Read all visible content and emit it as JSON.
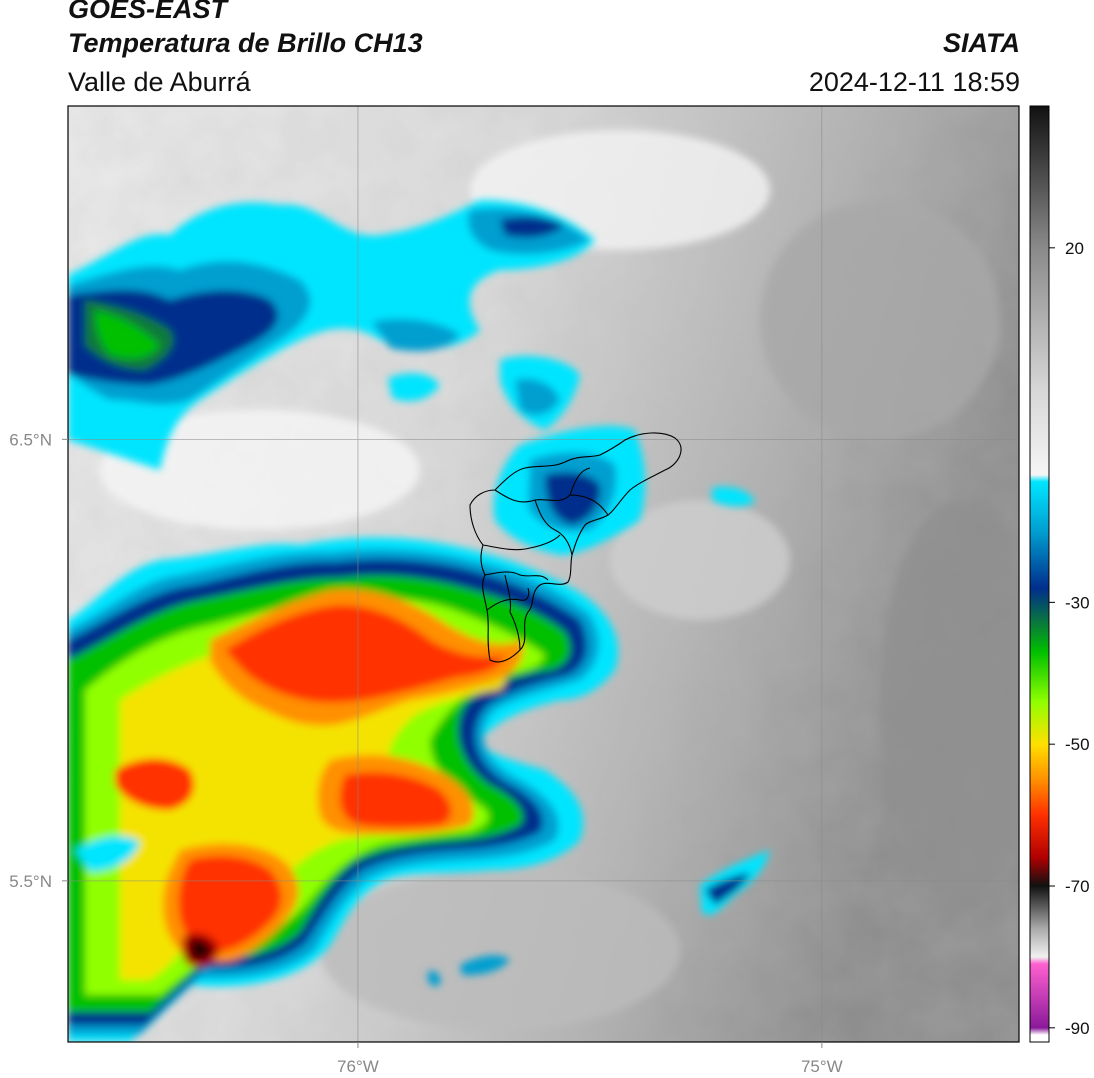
{
  "header": {
    "satellite": "GOES-EAST",
    "product": "Temperatura de Brillo CH13",
    "region": "Valle de Aburrá",
    "organization": "SIATA",
    "timestamp": "2024-12-11 18:59"
  },
  "map": {
    "lon_range": [
      -76.625,
      -74.575
    ],
    "lat_range": [
      5.135,
      7.255
    ],
    "lon_ticks": [
      {
        "value": -76,
        "label": "76°W"
      },
      {
        "value": -75,
        "label": "75°W"
      }
    ],
    "lat_ticks": [
      {
        "value": 6.5,
        "label": "6.5°N"
      },
      {
        "value": 5.5,
        "label": "5.5°N"
      }
    ],
    "gridlines": true
  },
  "colorbar": {
    "vmin": -92,
    "vmax": 40,
    "ticks": [
      {
        "value": 20,
        "label": "20"
      },
      {
        "value": -30,
        "label": "-30"
      },
      {
        "value": -50,
        "label": "-50"
      },
      {
        "value": -70,
        "label": "-70"
      },
      {
        "value": -90,
        "label": "-90"
      }
    ],
    "stops": [
      {
        "value": 40,
        "color": "#111111"
      },
      {
        "value": 20,
        "color": "#8a8a8a"
      },
      {
        "value": 0,
        "color": "#d6d6d6"
      },
      {
        "value": -12,
        "color": "#f5f5f5"
      },
      {
        "value": -13,
        "color": "#00e5ff"
      },
      {
        "value": -20,
        "color": "#009fd0"
      },
      {
        "value": -28,
        "color": "#002e8c"
      },
      {
        "value": -33,
        "color": "#0a7a3a"
      },
      {
        "value": -37,
        "color": "#00c000"
      },
      {
        "value": -44,
        "color": "#90ff00"
      },
      {
        "value": -50,
        "color": "#ffe000"
      },
      {
        "value": -55,
        "color": "#ff9000"
      },
      {
        "value": -60,
        "color": "#ff3000"
      },
      {
        "value": -66,
        "color": "#b00000"
      },
      {
        "value": -70,
        "color": "#111111"
      },
      {
        "value": -76,
        "color": "#aaaaaa"
      },
      {
        "value": -80,
        "color": "#f0f0f0"
      },
      {
        "value": -81,
        "color": "#ff60d0"
      },
      {
        "value": -90,
        "color": "#8a1a9a"
      },
      {
        "value": -91,
        "color": "#ffffff"
      }
    ]
  }
}
